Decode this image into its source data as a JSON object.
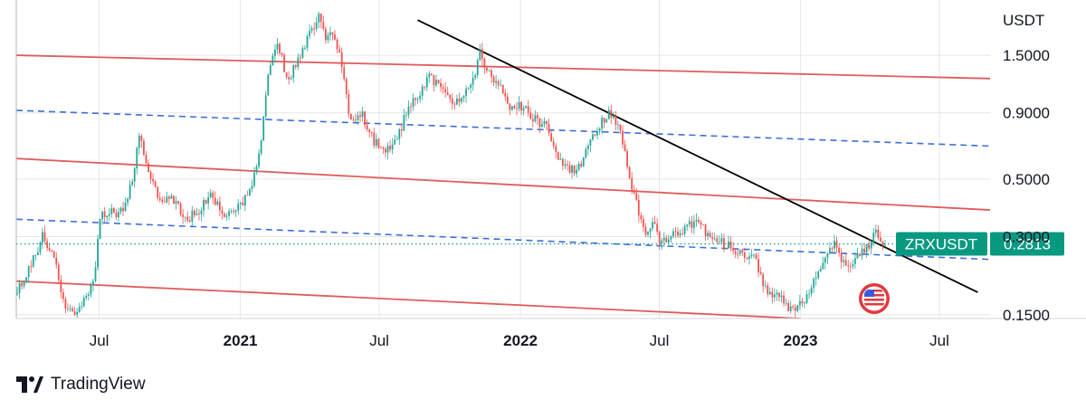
{
  "chart_data": {
    "type": "candlestick",
    "symbol": "ZRXUSDT",
    "currency_label": "USDT",
    "last_price": "0.2813",
    "y_scale": "log",
    "y_range": [
      0.145,
      2.45
    ],
    "x_range": [
      "2020-03-15",
      "2023-09-05"
    ],
    "y_ticks": [
      {
        "value": 1.5,
        "label": "1.5000"
      },
      {
        "value": 0.9,
        "label": "0.9000"
      },
      {
        "value": 0.5,
        "label": "0.5000"
      },
      {
        "value": 0.3,
        "label": "0.3000"
      },
      {
        "value": 0.15,
        "label": "0.1500"
      }
    ],
    "x_ticks": [
      {
        "date": "2020-07-01",
        "label": "Jul",
        "major": false
      },
      {
        "date": "2021-01-01",
        "label": "2021",
        "major": true
      },
      {
        "date": "2021-07-01",
        "label": "Jul",
        "major": false
      },
      {
        "date": "2022-01-01",
        "label": "2022",
        "major": true
      },
      {
        "date": "2022-07-01",
        "label": "Jul",
        "major": false
      },
      {
        "date": "2023-01-01",
        "label": "2023",
        "major": true
      },
      {
        "date": "2023-07-01",
        "label": "Jul",
        "major": false
      }
    ],
    "price_path": [
      [
        "2020-03-15",
        0.18
      ],
      [
        "2020-04-01",
        0.22
      ],
      [
        "2020-04-20",
        0.3
      ],
      [
        "2020-05-05",
        0.25
      ],
      [
        "2020-05-20",
        0.16
      ],
      [
        "2020-06-01",
        0.15
      ],
      [
        "2020-06-15",
        0.17
      ],
      [
        "2020-06-25",
        0.2
      ],
      [
        "2020-07-05",
        0.36
      ],
      [
        "2020-07-20",
        0.37
      ],
      [
        "2020-08-05",
        0.38
      ],
      [
        "2020-08-15",
        0.5
      ],
      [
        "2020-08-25",
        0.75
      ],
      [
        "2020-09-05",
        0.52
      ],
      [
        "2020-09-20",
        0.42
      ],
      [
        "2020-10-05",
        0.42
      ],
      [
        "2020-10-25",
        0.35
      ],
      [
        "2020-11-10",
        0.38
      ],
      [
        "2020-11-25",
        0.45
      ],
      [
        "2020-12-10",
        0.37
      ],
      [
        "2020-12-25",
        0.38
      ],
      [
        "2021-01-05",
        0.4
      ],
      [
        "2021-01-25",
        0.55
      ],
      [
        "2021-02-10",
        1.4
      ],
      [
        "2021-02-20",
        1.7
      ],
      [
        "2021-03-05",
        1.2
      ],
      [
        "2021-03-20",
        1.45
      ],
      [
        "2021-04-05",
        1.9
      ],
      [
        "2021-04-15",
        2.1
      ],
      [
        "2021-04-25",
        1.7
      ],
      [
        "2021-05-05",
        1.85
      ],
      [
        "2021-05-15",
        1.4
      ],
      [
        "2021-05-25",
        0.85
      ],
      [
        "2021-06-10",
        0.9
      ],
      [
        "2021-06-25",
        0.7
      ],
      [
        "2021-07-10",
        0.65
      ],
      [
        "2021-07-25",
        0.7
      ],
      [
        "2021-08-10",
        0.95
      ],
      [
        "2021-08-25",
        1.05
      ],
      [
        "2021-09-05",
        1.3
      ],
      [
        "2021-09-20",
        1.1
      ],
      [
        "2021-10-05",
        1.0
      ],
      [
        "2021-10-20",
        1.05
      ],
      [
        "2021-11-01",
        1.15
      ],
      [
        "2021-11-10",
        1.55
      ],
      [
        "2021-11-20",
        1.3
      ],
      [
        "2021-12-05",
        1.15
      ],
      [
        "2021-12-20",
        0.95
      ],
      [
        "2022-01-05",
        0.95
      ],
      [
        "2022-01-20",
        0.85
      ],
      [
        "2022-02-05",
        0.8
      ],
      [
        "2022-02-20",
        0.6
      ],
      [
        "2022-03-05",
        0.55
      ],
      [
        "2022-03-20",
        0.55
      ],
      [
        "2022-04-05",
        0.7
      ],
      [
        "2022-04-20",
        0.85
      ],
      [
        "2022-05-01",
        0.9
      ],
      [
        "2022-05-10",
        0.82
      ],
      [
        "2022-05-20",
        0.6
      ],
      [
        "2022-06-01",
        0.42
      ],
      [
        "2022-06-15",
        0.3
      ],
      [
        "2022-06-25",
        0.35
      ],
      [
        "2022-07-05",
        0.28
      ],
      [
        "2022-07-20",
        0.3
      ],
      [
        "2022-08-05",
        0.32
      ],
      [
        "2022-08-20",
        0.35
      ],
      [
        "2022-09-05",
        0.3
      ],
      [
        "2022-09-20",
        0.29
      ],
      [
        "2022-10-05",
        0.27
      ],
      [
        "2022-10-20",
        0.26
      ],
      [
        "2022-11-05",
        0.25
      ],
      [
        "2022-11-15",
        0.2
      ],
      [
        "2022-11-25",
        0.18
      ],
      [
        "2022-12-10",
        0.17
      ],
      [
        "2022-12-25",
        0.155
      ],
      [
        "2023-01-10",
        0.17
      ],
      [
        "2023-01-25",
        0.22
      ],
      [
        "2023-02-05",
        0.26
      ],
      [
        "2023-02-15",
        0.28
      ],
      [
        "2023-02-25",
        0.25
      ],
      [
        "2023-03-10",
        0.23
      ],
      [
        "2023-03-20",
        0.26
      ],
      [
        "2023-04-01",
        0.27
      ],
      [
        "2023-04-10",
        0.33
      ],
      [
        "2023-04-20",
        0.2813
      ]
    ],
    "trend_lines": [
      {
        "name": "upper-red-channel",
        "style": "solid",
        "color": "#e05c5c",
        "points": [
          [
            "2020-03-15",
            1.5
          ],
          [
            "2023-09-05",
            1.22
          ]
        ]
      },
      {
        "name": "upper-blue-mid",
        "style": "dashed",
        "color": "#3b6fd8",
        "points": [
          [
            "2020-03-15",
            0.92
          ],
          [
            "2023-09-05",
            0.67
          ]
        ]
      },
      {
        "name": "middle-red-channel",
        "style": "solid",
        "color": "#e05c5c",
        "points": [
          [
            "2020-03-15",
            0.6
          ],
          [
            "2023-09-05",
            0.38
          ]
        ]
      },
      {
        "name": "lower-blue-mid",
        "style": "dashed",
        "color": "#3b6fd8",
        "points": [
          [
            "2020-03-15",
            0.35
          ],
          [
            "2023-09-05",
            0.245
          ]
        ]
      },
      {
        "name": "lower-red-channel",
        "style": "solid",
        "color": "#e05c5c",
        "points": [
          [
            "2020-03-15",
            0.202
          ],
          [
            "2023-01-01",
            0.145
          ]
        ]
      },
      {
        "name": "descending-resistance",
        "style": "solid",
        "color": "#000000",
        "points": [
          [
            "2021-08-20",
            2.05
          ],
          [
            "2023-08-20",
            0.183
          ]
        ]
      }
    ],
    "colors": {
      "up": "#26a69a",
      "down": "#ef5350",
      "last_price": "#089981",
      "grid": "#e6e6e6"
    }
  },
  "footer": {
    "brand": "TradingView"
  }
}
